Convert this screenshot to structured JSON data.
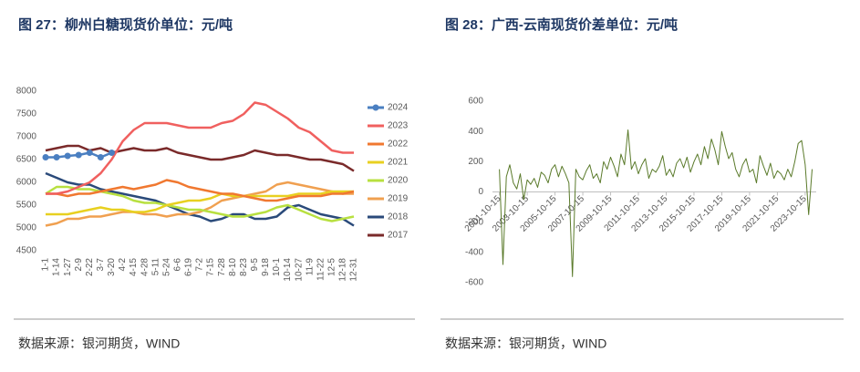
{
  "chart_data": [
    {
      "type": "line",
      "title": "图 27：柳州白糖现货价单位：元/吨",
      "source": "数据来源：银河期货，WIND",
      "categories": [
        "1-1",
        "1-14",
        "1-27",
        "2-9",
        "2-22",
        "3-7",
        "3-20",
        "4-2",
        "4-15",
        "4-28",
        "5-11",
        "5-24",
        "6-6",
        "6-19",
        "7-2",
        "7-15",
        "7-28",
        "8-10",
        "8-23",
        "9-5",
        "9-18",
        "10-1",
        "10-14",
        "10-27",
        "11-9",
        "11-22",
        "12-5",
        "12-18",
        "12-31"
      ],
      "ylim": [
        4500,
        8000
      ],
      "yticks": [
        4500,
        5000,
        5500,
        6000,
        6500,
        7000,
        7500,
        8000
      ],
      "grid": false,
      "legend": "right",
      "series": [
        {
          "name": "2024",
          "color": "#4a7fc1",
          "marker": "circle",
          "values": [
            6550,
            6550,
            6580,
            6600,
            6650,
            6550,
            6650,
            null,
            null,
            null,
            null,
            null,
            null,
            null,
            null,
            null,
            null,
            null,
            null,
            null,
            null,
            null,
            null,
            null,
            null,
            null,
            null,
            null,
            null
          ]
        },
        {
          "name": "2023",
          "color": "#f0605f",
          "values": [
            5750,
            5750,
            5800,
            5900,
            6000,
            6200,
            6500,
            6900,
            7150,
            7300,
            7300,
            7300,
            7250,
            7200,
            7200,
            7200,
            7300,
            7350,
            7500,
            7750,
            7700,
            7550,
            7400,
            7200,
            7100,
            6900,
            6700,
            6650,
            6650
          ]
        },
        {
          "name": "2022",
          "color": "#f07830",
          "values": [
            5750,
            5750,
            5700,
            5750,
            5750,
            5800,
            5850,
            5900,
            5850,
            5900,
            5950,
            6050,
            6000,
            5900,
            5850,
            5800,
            5750,
            5750,
            5700,
            5650,
            5600,
            5600,
            5650,
            5700,
            5700,
            5700,
            5750,
            5750,
            5800
          ]
        },
        {
          "name": "2021",
          "color": "#e8d020",
          "values": [
            5300,
            5300,
            5300,
            5350,
            5400,
            5450,
            5400,
            5400,
            5350,
            5350,
            5400,
            5500,
            5550,
            5600,
            5600,
            5650,
            5750,
            5700,
            5700,
            5700,
            5700,
            5700,
            5700,
            5750,
            5750,
            5750,
            5800,
            5800,
            5800
          ]
        },
        {
          "name": "2020",
          "color": "#b8e040",
          "values": [
            5750,
            5900,
            5900,
            5850,
            5850,
            5800,
            5750,
            5700,
            5600,
            5550,
            5550,
            5500,
            5450,
            5400,
            5400,
            5350,
            5300,
            5250,
            5250,
            5300,
            5350,
            5450,
            5500,
            5400,
            5300,
            5200,
            5150,
            5200,
            5250
          ]
        },
        {
          "name": "2019",
          "color": "#f0a050",
          "values": [
            5050,
            5100,
            5200,
            5200,
            5250,
            5250,
            5300,
            5350,
            5350,
            5300,
            5300,
            5250,
            5300,
            5300,
            5350,
            5450,
            5600,
            5650,
            5700,
            5750,
            5800,
            5950,
            6000,
            5950,
            5900,
            5850,
            5800,
            5750,
            5750
          ]
        },
        {
          "name": "2018",
          "color": "#2a4a7a",
          "values": [
            6200,
            6100,
            6000,
            5950,
            5950,
            5850,
            5800,
            5750,
            5700,
            5650,
            5600,
            5500,
            5400,
            5300,
            5250,
            5150,
            5200,
            5300,
            5300,
            5200,
            5200,
            5250,
            5450,
            5500,
            5400,
            5300,
            5250,
            5200,
            5050
          ]
        },
        {
          "name": "2017",
          "color": "#7a2a2a",
          "values": [
            6700,
            6750,
            6800,
            6800,
            6700,
            6750,
            6650,
            6700,
            6750,
            6700,
            6700,
            6750,
            6650,
            6600,
            6550,
            6500,
            6500,
            6550,
            6600,
            6700,
            6650,
            6600,
            6600,
            6550,
            6500,
            6500,
            6450,
            6400,
            6250
          ]
        }
      ]
    },
    {
      "type": "line",
      "title": "图 28：广西-云南现货价差单位：元/吨",
      "source": "数据来源：银河期货，WIND",
      "x": [
        "2001-10-15",
        "2002-01-15",
        "2002-04-15",
        "2002-07-15",
        "2002-10-15",
        "2003-01-15",
        "2003-04-15",
        "2003-07-15",
        "2003-10-15",
        "2004-01-15",
        "2004-04-15",
        "2004-07-15",
        "2004-10-15",
        "2005-01-15",
        "2005-04-15",
        "2005-07-15",
        "2005-10-15",
        "2006-01-15",
        "2006-04-15",
        "2006-07-15",
        "2006-10-15",
        "2007-01-15",
        "2007-04-15",
        "2007-07-15",
        "2007-10-15",
        "2008-01-15",
        "2008-04-15",
        "2008-07-15",
        "2008-10-15",
        "2009-01-15",
        "2009-04-15",
        "2009-07-15",
        "2009-10-15",
        "2010-01-15",
        "2010-04-15",
        "2010-07-15",
        "2010-10-15",
        "2011-01-15",
        "2011-04-15",
        "2011-07-15",
        "2011-10-15",
        "2012-01-15",
        "2012-04-15",
        "2012-07-15",
        "2012-10-15",
        "2013-01-15",
        "2013-04-15",
        "2013-07-15",
        "2013-10-15",
        "2014-01-15",
        "2014-04-15",
        "2014-07-15",
        "2014-10-15",
        "2015-01-15",
        "2015-04-15",
        "2015-07-15",
        "2015-10-15",
        "2016-01-15",
        "2016-04-15",
        "2016-07-15",
        "2016-10-15",
        "2017-01-15",
        "2017-04-15",
        "2017-07-15",
        "2017-10-15",
        "2018-01-15",
        "2018-04-15",
        "2018-07-15",
        "2018-10-15",
        "2019-01-15",
        "2019-04-15",
        "2019-07-15",
        "2019-10-15",
        "2020-01-15",
        "2020-04-15",
        "2020-07-15",
        "2020-10-15",
        "2021-01-15",
        "2021-04-15",
        "2021-07-15",
        "2021-10-15",
        "2022-01-15",
        "2022-04-15",
        "2022-07-15",
        "2022-10-15",
        "2023-01-15",
        "2023-04-15",
        "2023-07-15",
        "2023-10-15",
        "2024-01-15",
        "2024-04-15"
      ],
      "xlim": [
        "2001-04-15",
        "2024-08-01"
      ],
      "xticks": [
        "2001-10-15",
        "2003-10-15",
        "2005-10-15",
        "2007-10-15",
        "2009-10-15",
        "2011-10-15",
        "2013-10-15",
        "2015-10-15",
        "2017-10-15",
        "2019-10-15",
        "2021-10-15",
        "2023-10-15"
      ],
      "ylim": [
        -600,
        600
      ],
      "yticks": [
        -600,
        -400,
        -200,
        0,
        200,
        400,
        600
      ],
      "grid": false,
      "series": [
        {
          "color": "#5a7a2a",
          "values": [
            150,
            -480,
            100,
            180,
            60,
            20,
            120,
            -50,
            80,
            50,
            90,
            30,
            130,
            110,
            60,
            150,
            180,
            100,
            170,
            120,
            60,
            -560,
            150,
            100,
            80,
            140,
            180,
            90,
            120,
            60,
            200,
            150,
            230,
            170,
            100,
            250,
            180,
            410,
            150,
            200,
            120,
            180,
            220,
            90,
            150,
            130,
            170,
            240,
            110,
            150,
            100,
            190,
            220,
            160,
            230,
            130,
            200,
            250,
            180,
            300,
            220,
            350,
            280,
            180,
            400,
            300,
            220,
            260,
            150,
            100,
            180,
            220,
            130,
            150,
            60,
            240,
            170,
            110,
            190,
            90,
            140,
            120,
            80,
            150,
            100,
            200,
            320,
            340,
            180,
            -150,
            150
          ]
        }
      ]
    }
  ]
}
